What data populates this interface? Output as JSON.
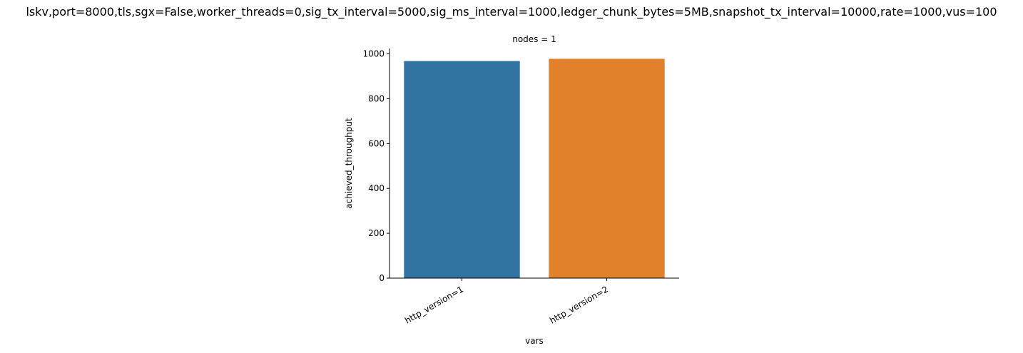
{
  "chart_data": {
    "type": "bar",
    "title": "lskv,port=8000,tls,sgx=False,worker_threads=0,sig_tx_interval=5000,sig_ms_interval=1000,ledger_chunk_bytes=5MB,snapshot_tx_interval=10000,rate=1000,vus=100",
    "facet_title": "nodes = 1",
    "xlabel": "vars",
    "ylabel": "achieved_throughput",
    "categories": [
      "http_version=1",
      "http_version=2"
    ],
    "values": [
      968,
      978
    ],
    "colors": [
      "#3274a1",
      "#e1812c"
    ],
    "ylim": [
      0,
      1024
    ],
    "yticks": [
      0,
      200,
      400,
      600,
      800,
      1000
    ],
    "grid": false,
    "legend": "none"
  }
}
